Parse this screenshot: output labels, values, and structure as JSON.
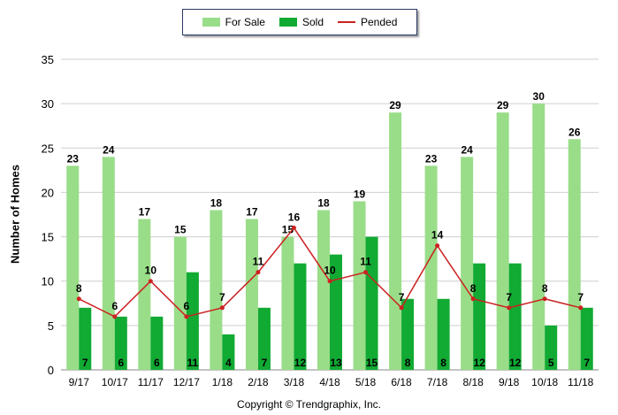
{
  "chart_data": {
    "type": "bar",
    "categories": [
      "9/17",
      "10/17",
      "11/17",
      "12/17",
      "1/18",
      "2/18",
      "3/18",
      "4/18",
      "5/18",
      "6/18",
      "7/18",
      "8/18",
      "9/18",
      "10/18",
      "11/18"
    ],
    "series": [
      {
        "name": "For Sale",
        "kind": "bar",
        "color": "#99dd88",
        "values": [
          23,
          24,
          17,
          15,
          18,
          17,
          15,
          18,
          19,
          29,
          23,
          24,
          29,
          30,
          26
        ]
      },
      {
        "name": "Sold",
        "kind": "bar",
        "color": "#11aa33",
        "values": [
          7,
          6,
          6,
          11,
          4,
          7,
          12,
          13,
          15,
          8,
          8,
          12,
          12,
          5,
          7
        ]
      },
      {
        "name": "Pended",
        "kind": "line",
        "color": "#cc2222",
        "values": [
          8,
          6,
          10,
          6,
          7,
          11,
          16,
          10,
          11,
          7,
          14,
          8,
          7,
          8,
          7
        ]
      }
    ],
    "ylabel": "Number of Homes",
    "yticks": [
      0,
      5,
      10,
      15,
      20,
      25,
      30,
      35
    ],
    "ylim": [
      0,
      35
    ],
    "grid": true,
    "legend": "top-center"
  },
  "footer": {
    "copyright": "Copyright © Trendgraphix, Inc."
  }
}
